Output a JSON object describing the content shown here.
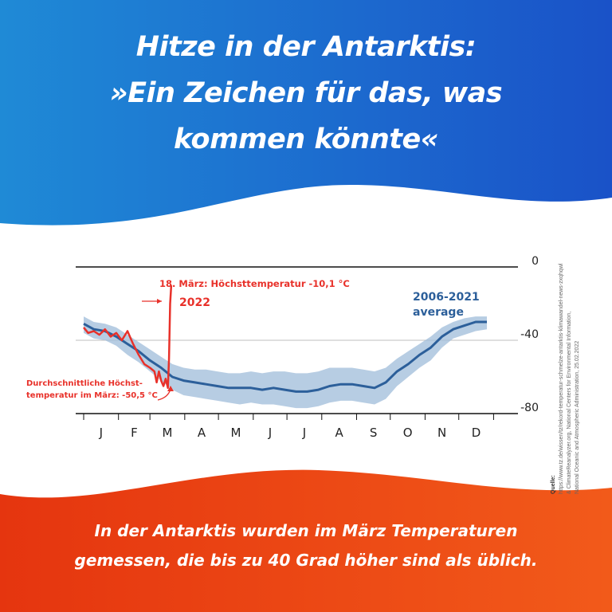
{
  "headline": {
    "line1": "Hitze in der Antarktis:",
    "line2": "»Ein Zeichen für das, was",
    "line3": "kommen könnte«"
  },
  "bottom_text": {
    "line1": "In der Antarktis wurden im März Temperaturen",
    "line2": "gemessen, die bis zu 40 Grad höher sind als üblich."
  },
  "source": {
    "title": "Quelle:",
    "line1": "https://www.tz.de/wissen/tz/rekord-temperatur-schmelze-antarktis-klimawandel-news-zxqhqwl",
    "line2": "& ClimateReanalyzer.org, National Centers for Environmental Information,",
    "line3": "National Oceanic and Atmospheric Administration, 25.02.2022"
  },
  "colors": {
    "top_gradient_start": "#1f8ad6",
    "top_gradient_end": "#1a52c8",
    "bottom_gradient_start": "#e5350f",
    "bottom_gradient_end": "#f25a1a",
    "series_2022": "#e8312a",
    "series_average": "#2c5f9a",
    "band": "#9fbcd9"
  },
  "chart_data": {
    "type": "line",
    "title": "",
    "xlabel": "",
    "ylabel": "",
    "ylim": [
      -80,
      0
    ],
    "yticks": [
      0,
      -40,
      -80
    ],
    "months": [
      "J",
      "F",
      "M",
      "A",
      "M",
      "J",
      "J",
      "A",
      "S",
      "O",
      "N",
      "D"
    ],
    "grid": true,
    "annotations": {
      "peak": "18. März: Höchsttemperatur -10,1 °C",
      "series_2022_label": "2022",
      "average_label_line1": "2006-2021",
      "average_label_line2": "average",
      "march_avg_line1": "Durchschnittliche Höchst-",
      "march_avg_line2": "temperatur im März: -50,5 °C"
    },
    "series": [
      {
        "name": "2006-2021 average",
        "day": [
          1,
          10,
          20,
          30,
          40,
          50,
          60,
          70,
          80,
          90,
          100,
          110,
          120,
          130,
          140,
          150,
          160,
          170,
          180,
          190,
          200,
          210,
          220,
          230,
          240,
          250,
          260,
          270,
          280,
          290,
          300,
          310,
          320,
          330,
          340,
          350,
          360
        ],
        "temp": [
          -31,
          -34,
          -35,
          -38,
          -42,
          -46,
          -51,
          -55,
          -60,
          -62,
          -63,
          -64,
          -65,
          -66,
          -66,
          -66,
          -67,
          -66,
          -67,
          -68,
          -68,
          -67,
          -65,
          -64,
          -64,
          -65,
          -66,
          -63,
          -57,
          -53,
          -48,
          -44,
          -38,
          -34,
          -32,
          -30,
          -30
        ],
        "band_upper": [
          -27,
          -30,
          -31,
          -33,
          -37,
          -41,
          -45,
          -49,
          -53,
          -55,
          -56,
          -56,
          -57,
          -58,
          -58,
          -57,
          -58,
          -57,
          -57,
          -58,
          -58,
          -57,
          -55,
          -55,
          -55,
          -56,
          -57,
          -55,
          -50,
          -46,
          -42,
          -38,
          -33,
          -30,
          -28,
          -27,
          -27
        ],
        "band_lower": [
          -36,
          -39,
          -40,
          -43,
          -48,
          -52,
          -57,
          -62,
          -67,
          -70,
          -71,
          -72,
          -73,
          -74,
          -75,
          -74,
          -75,
          -75,
          -76,
          -77,
          -77,
          -76,
          -74,
          -73,
          -73,
          -74,
          -75,
          -72,
          -65,
          -60,
          -55,
          -51,
          -44,
          -39,
          -37,
          -35,
          -34
        ]
      },
      {
        "name": "2022",
        "day": [
          1,
          5,
          10,
          15,
          20,
          25,
          30,
          35,
          40,
          45,
          50,
          55,
          60,
          64,
          66,
          68,
          70,
          72,
          74,
          76,
          77,
          78,
          79
        ],
        "temp": [
          -33,
          -36,
          -35,
          -37,
          -34,
          -38,
          -36,
          -40,
          -35,
          -42,
          -48,
          -53,
          -55,
          -57,
          -63,
          -57,
          -62,
          -65,
          -61,
          -66,
          -50,
          -20,
          -10
        ]
      }
    ]
  }
}
